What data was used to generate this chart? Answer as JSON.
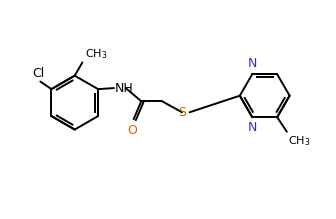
{
  "bg_color": "#ffffff",
  "line_color": "#000000",
  "N_color": "#3333cc",
  "O_color": "#cc6600",
  "S_color": "#cc6600",
  "Cl_color": "#000000",
  "line_width": 1.4,
  "font_size": 9,
  "figsize": [
    3.36,
    2.19
  ],
  "dpi": 100,
  "xlim": [
    0,
    9.5
  ],
  "ylim": [
    0,
    6.3
  ]
}
